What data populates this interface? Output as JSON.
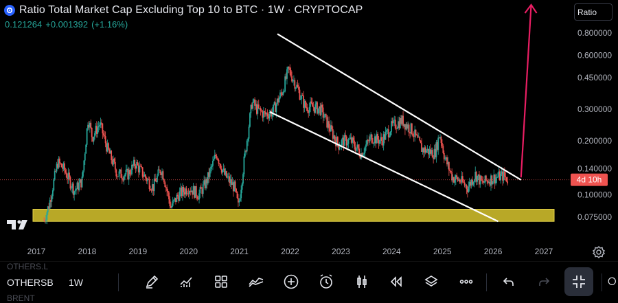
{
  "header": {
    "title": "Ratio Total Market Cap Excluding Top 10 to BTC · 1W · CRYPTOCAP",
    "price": "0.121264",
    "change": "+0.001392",
    "change_pct": "(+1.16%)"
  },
  "scale_label": "Ratio",
  "countdown_badge": "4d 10h",
  "toolbar": {
    "ghost_symbol_top": "OTHERS.L",
    "symbol": "OTHERSB",
    "interval": "1W",
    "ghost_symbol_bottom": "BRENT"
  },
  "colors": {
    "up": "#26a69a",
    "down": "#ef5350",
    "trendline": "#ffffff",
    "support_zone": "#c8b62a",
    "projection_arrow": "#e91e63",
    "badge": "#ef5350"
  },
  "icons": [
    "brush-icon",
    "indicators-icon",
    "templates-icon",
    "drawing-tools-icon",
    "add-icon",
    "alert-icon",
    "bar-style-icon",
    "replay-icon",
    "layers-icon",
    "more-icon",
    "undo-icon",
    "redo-icon",
    "exit-fullscreen-icon",
    "settings-icon",
    "tradingview-logo"
  ],
  "chart_data": {
    "type": "candlestick",
    "scale": "log",
    "interval": "1W",
    "x_ticks": [
      "2017",
      "2018",
      "2019",
      "2020",
      "2021",
      "2022",
      "2023",
      "2024",
      "2025",
      "2026",
      "2027"
    ],
    "y_ticks": [
      "0.800000",
      "0.600000",
      "0.450000",
      "0.300000",
      "0.200000",
      "0.140000",
      "0.100000",
      "0.075000"
    ],
    "ylim": [
      0.063,
      0.95
    ],
    "xlim": [
      2016.8,
      2027.2
    ],
    "last_value": 0.121264,
    "price_path": [
      [
        2017.15,
        0.072
      ],
      [
        2017.25,
        0.088
      ],
      [
        2017.42,
        0.152
      ],
      [
        2017.55,
        0.138
      ],
      [
        2017.75,
        0.105
      ],
      [
        2017.9,
        0.12
      ],
      [
        2018.02,
        0.27
      ],
      [
        2018.1,
        0.21
      ],
      [
        2018.25,
        0.25
      ],
      [
        2018.4,
        0.18
      ],
      [
        2018.6,
        0.13
      ],
      [
        2018.8,
        0.13
      ],
      [
        2018.95,
        0.15
      ],
      [
        2019.15,
        0.125
      ],
      [
        2019.3,
        0.11
      ],
      [
        2019.45,
        0.14
      ],
      [
        2019.5,
        0.13
      ],
      [
        2019.65,
        0.085
      ],
      [
        2019.8,
        0.1
      ],
      [
        2020.0,
        0.11
      ],
      [
        2020.2,
        0.1
      ],
      [
        2020.35,
        0.118
      ],
      [
        2020.55,
        0.17
      ],
      [
        2020.7,
        0.13
      ],
      [
        2020.9,
        0.11
      ],
      [
        2020.98,
        0.085
      ],
      [
        2021.1,
        0.16
      ],
      [
        2021.25,
        0.33
      ],
      [
        2021.35,
        0.3
      ],
      [
        2021.5,
        0.28
      ],
      [
        2021.65,
        0.29
      ],
      [
        2021.85,
        0.38
      ],
      [
        2021.97,
        0.5
      ],
      [
        2022.1,
        0.42
      ],
      [
        2022.3,
        0.31
      ],
      [
        2022.45,
        0.31
      ],
      [
        2022.6,
        0.3
      ],
      [
        2022.8,
        0.23
      ],
      [
        2022.95,
        0.19
      ],
      [
        2023.05,
        0.2
      ],
      [
        2023.2,
        0.2
      ],
      [
        2023.4,
        0.17
      ],
      [
        2023.6,
        0.21
      ],
      [
        2023.8,
        0.2
      ],
      [
        2024.0,
        0.24
      ],
      [
        2024.2,
        0.26
      ],
      [
        2024.4,
        0.23
      ],
      [
        2024.6,
        0.18
      ],
      [
        2024.85,
        0.17
      ],
      [
        2024.95,
        0.22
      ],
      [
        2025.05,
        0.16
      ],
      [
        2025.2,
        0.125
      ],
      [
        2025.35,
        0.12
      ],
      [
        2025.5,
        0.11
      ],
      [
        2025.65,
        0.13
      ],
      [
        2025.78,
        0.116
      ],
      [
        2025.9,
        0.121
      ],
      [
        2026.05,
        0.125
      ],
      [
        2026.2,
        0.128
      ],
      [
        2026.3,
        0.121
      ]
    ],
    "support_zone": {
      "from": 0.071,
      "to": 0.083
    },
    "channel": {
      "upper": [
        [
          2021.75,
          0.79
        ],
        [
          2026.55,
          0.121
        ]
      ],
      "lower": [
        [
          2021.6,
          0.29
        ],
        [
          2026.1,
          0.071
        ]
      ]
    },
    "projection_arrow": [
      [
        2026.55,
        0.125
      ],
      [
        2026.75,
        0.95
      ]
    ]
  }
}
